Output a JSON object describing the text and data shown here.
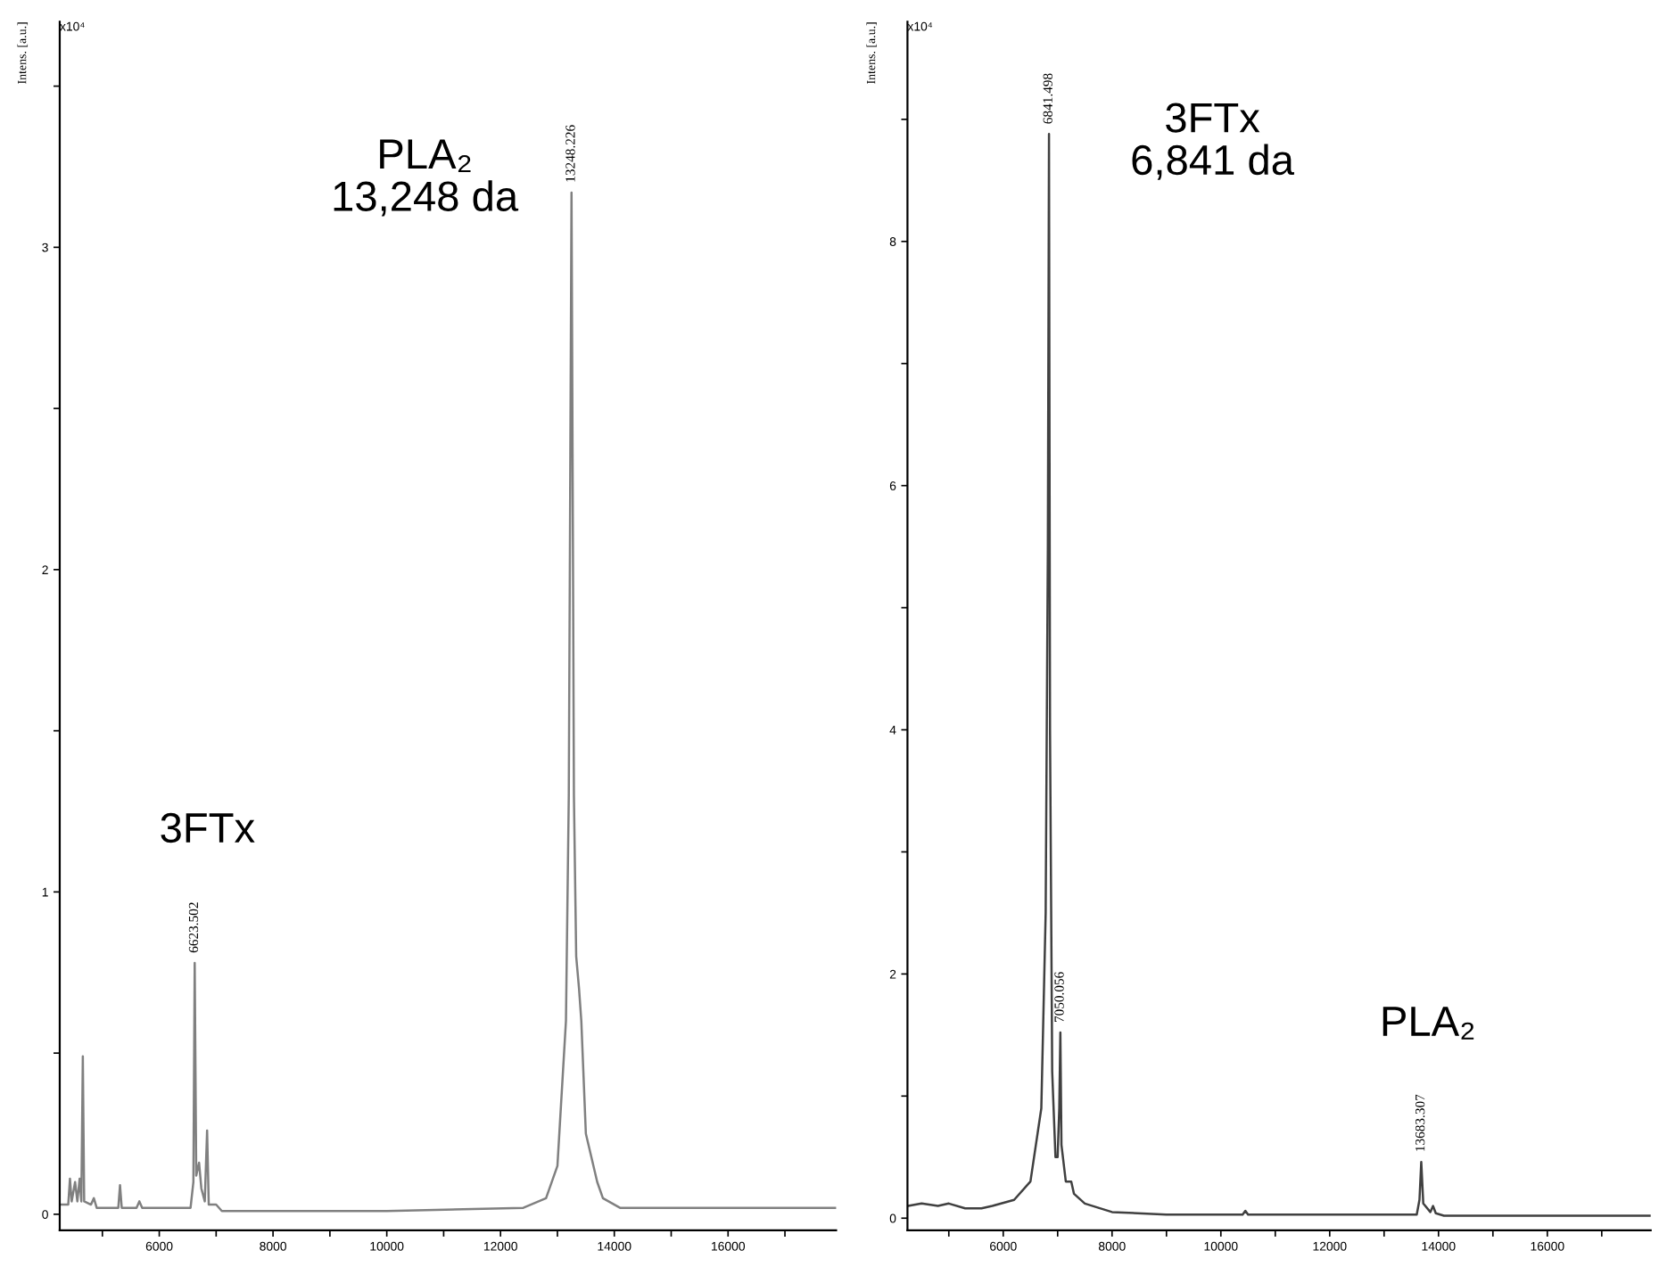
{
  "chart_data": [
    {
      "type": "line",
      "ylabel": "Intens. [a.u.]",
      "xlim": [
        4250,
        17900
      ],
      "ylim": [
        -0.05,
        3.7
      ],
      "xticks": [
        {
          "value": 5000,
          "label": null
        },
        6000,
        {
          "value": 7000,
          "label": null
        },
        8000,
        {
          "value": 9000,
          "label": null
        },
        10000,
        {
          "value": 11000,
          "label": null
        },
        12000,
        {
          "value": 13000,
          "label": null
        },
        14000,
        {
          "value": 15000,
          "label": null
        },
        16000,
        {
          "value": 17000,
          "label": null
        }
      ],
      "yticks": [
        0,
        {
          "value": 0.5,
          "label": null
        },
        1,
        {
          "value": 1.5,
          "label": null
        },
        2,
        {
          "value": 2.5,
          "label": null
        },
        3,
        {
          "value": 3.5,
          "label": null
        }
      ],
      "grid": false,
      "legend": false,
      "series": [
        {
          "color": "#808080",
          "x": [
            4250,
            4400,
            4430,
            4460,
            4520,
            4560,
            4600,
            4630,
            4656,
            4680,
            4800,
            4850,
            4900,
            5280,
            5310,
            5340,
            5600,
            5650,
            5700,
            6550,
            6600,
            6623,
            6650,
            6700,
            6740,
            6800,
            6841,
            6870,
            7000,
            7100,
            10000,
            12400,
            12800,
            13000,
            13150,
            13200,
            13248,
            13290,
            13330,
            13380,
            13420,
            13500,
            13700,
            13800,
            14100,
            17900
          ],
          "values": [
            0.03,
            0.03,
            0.11,
            0.04,
            0.1,
            0.04,
            0.11,
            0.04,
            0.49,
            0.04,
            0.03,
            0.05,
            0.02,
            0.02,
            0.09,
            0.02,
            0.02,
            0.04,
            0.02,
            0.02,
            0.1,
            0.78,
            0.12,
            0.16,
            0.08,
            0.04,
            0.26,
            0.03,
            0.03,
            0.01,
            0.01,
            0.02,
            0.05,
            0.15,
            0.6,
            1.3,
            3.17,
            1.3,
            0.8,
            0.7,
            0.6,
            0.25,
            0.1,
            0.05,
            0.02,
            0.02
          ]
        }
      ],
      "annotations": [
        "x10⁴",
        "3FTx",
        "PLA₂\n13,248 da",
        {
          "text": "6623.502",
          "x": 6623,
          "y": 0.78
        },
        {
          "text": "13248.226",
          "x": 13248,
          "y": 3.17
        }
      ]
    },
    {
      "type": "line",
      "ylabel": "Intens. [a.u.]",
      "xlim": [
        4240,
        17900
      ],
      "ylim": [
        -0.1,
        9.8
      ],
      "xticks": [
        {
          "value": 5000,
          "label": null
        },
        6000,
        {
          "value": 7000,
          "label": null
        },
        8000,
        {
          "value": 9000,
          "label": null
        },
        10000,
        {
          "value": 11000,
          "label": null
        },
        12000,
        {
          "value": 13000,
          "label": null
        },
        14000,
        {
          "value": 15000,
          "label": null
        },
        16000,
        {
          "value": 17000,
          "label": null
        }
      ],
      "yticks": [
        0,
        {
          "value": 1,
          "label": null
        },
        2,
        {
          "value": 3,
          "label": null
        },
        4,
        {
          "value": 5,
          "label": null
        },
        6,
        {
          "value": 7,
          "label": null
        },
        8,
        {
          "value": 9,
          "label": null
        }
      ],
      "grid": false,
      "legend": false,
      "series": [
        {
          "color": "#404040",
          "x": [
            4250,
            4500,
            4800,
            5000,
            5300,
            5600,
            5800,
            6200,
            6500,
            6700,
            6780,
            6820,
            6841,
            6860,
            6900,
            6960,
            7000,
            7030,
            7050,
            7070,
            7150,
            7250,
            7300,
            7500,
            8000,
            9000,
            10400,
            10450,
            10500,
            13600,
            13650,
            13683,
            13720,
            13850,
            13900,
            13950,
            14100,
            17900
          ],
          "values": [
            0.1,
            0.12,
            0.1,
            0.12,
            0.08,
            0.08,
            0.1,
            0.15,
            0.3,
            0.9,
            2.5,
            5.5,
            8.88,
            4.0,
            1.2,
            0.5,
            0.5,
            0.9,
            1.52,
            0.6,
            0.3,
            0.3,
            0.2,
            0.12,
            0.05,
            0.03,
            0.03,
            0.06,
            0.03,
            0.03,
            0.15,
            0.46,
            0.12,
            0.05,
            0.1,
            0.04,
            0.02,
            0.02
          ]
        }
      ],
      "annotations": [
        "x10⁴",
        "3FTx\n6,841 da",
        "PLA₂",
        {
          "text": "6841.498",
          "x": 6841,
          "y": 8.88
        },
        {
          "text": "7050.056",
          "x": 7050,
          "y": 1.52
        },
        {
          "text": "13683.307",
          "x": 13683,
          "y": 0.46
        }
      ]
    }
  ]
}
